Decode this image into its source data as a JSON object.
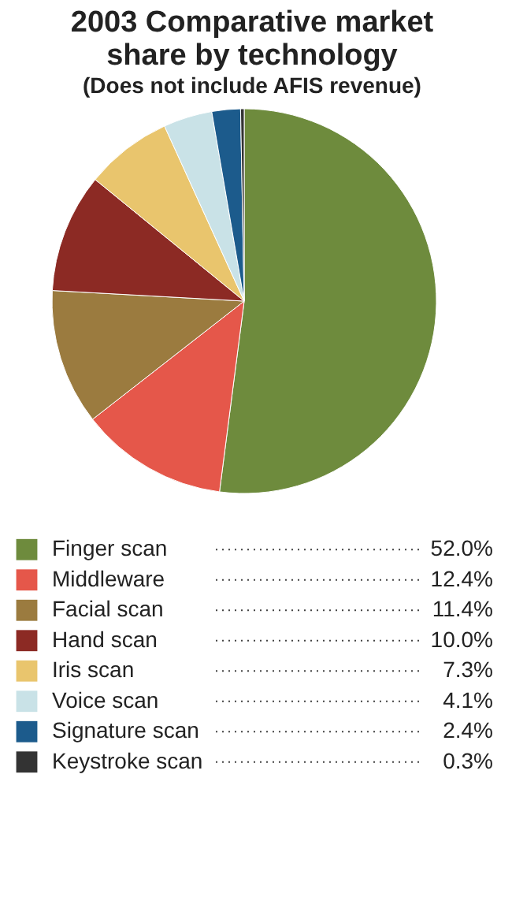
{
  "chart_data": {
    "type": "pie",
    "title": [
      "2003 Comparative market",
      "share by technology"
    ],
    "subtitle": "(Does not include AFIS revenue)",
    "categories": [
      "Finger scan",
      "Middleware",
      "Facial scan",
      "Hand scan",
      "Iris scan",
      "Voice scan",
      "Signature scan",
      "Keystroke scan"
    ],
    "values": [
      52.0,
      12.4,
      11.4,
      10.0,
      7.3,
      4.1,
      2.4,
      0.3
    ],
    "value_labels": [
      "52.0%",
      "12.4%",
      "11.4%",
      "10.0%",
      "7.3%",
      "4.1%",
      "2.4%",
      "0.3%"
    ],
    "colors": [
      "#6e8b3d",
      "#e5574a",
      "#9b7b3f",
      "#8c2a24",
      "#e9c56d",
      "#c9e2e7",
      "#1c5b8c",
      "#333333"
    ],
    "legend": "bottom"
  }
}
